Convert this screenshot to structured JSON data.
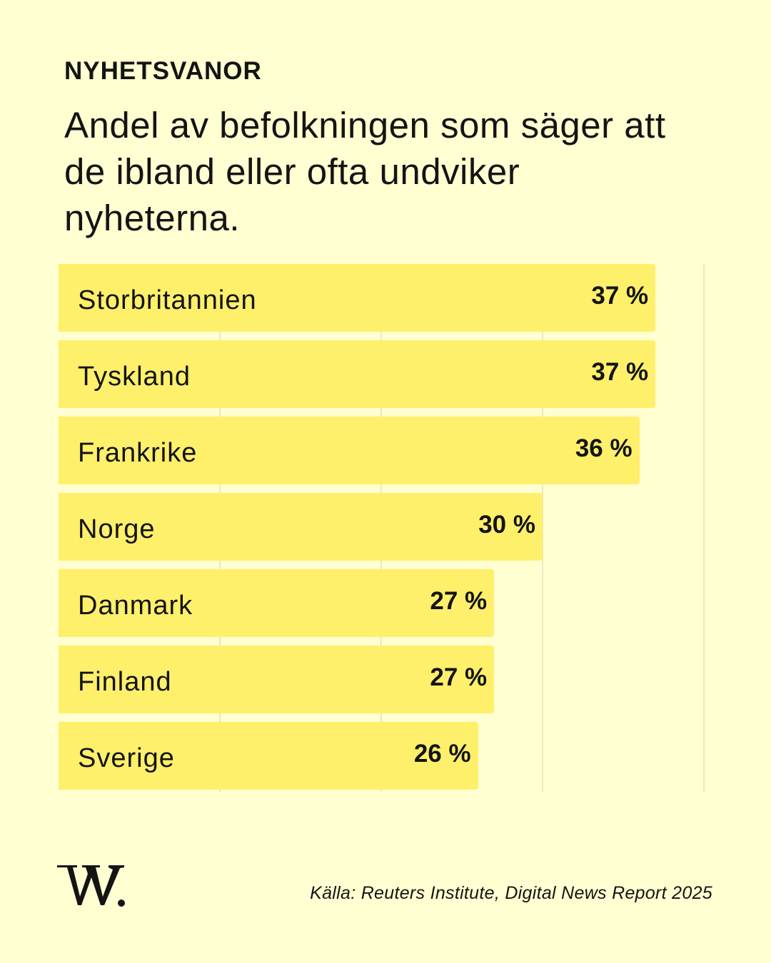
{
  "header": {
    "kicker": "NYHETSVANOR",
    "title": "Andel av befolkningen som säger att de ibland eller ofta undviker nyheterna."
  },
  "chart_data": {
    "type": "bar",
    "orientation": "horizontal",
    "title": "Andel av befolkningen som säger att de ibland eller ofta undviker nyheterna.",
    "categories": [
      "Storbritannien",
      "Tyskland",
      "Frankrike",
      "Norge",
      "Danmark",
      "Finland",
      "Sverige"
    ],
    "values": [
      37,
      37,
      36,
      30,
      27,
      27,
      26
    ],
    "value_labels": [
      "37 %",
      "37 %",
      "36 %",
      "30 %",
      "27 %",
      "27 %",
      "26 %"
    ],
    "unit": "%",
    "xlim": [
      0,
      40
    ],
    "grid": true,
    "gridline_values": [
      10,
      20,
      30,
      40
    ],
    "bar_color": "#fff06b",
    "background_color": "#ffffd1"
  },
  "footer": {
    "logo_icon": "w-logo-icon",
    "source": "Källa: Reuters Institute, Digital News Report 2025"
  }
}
